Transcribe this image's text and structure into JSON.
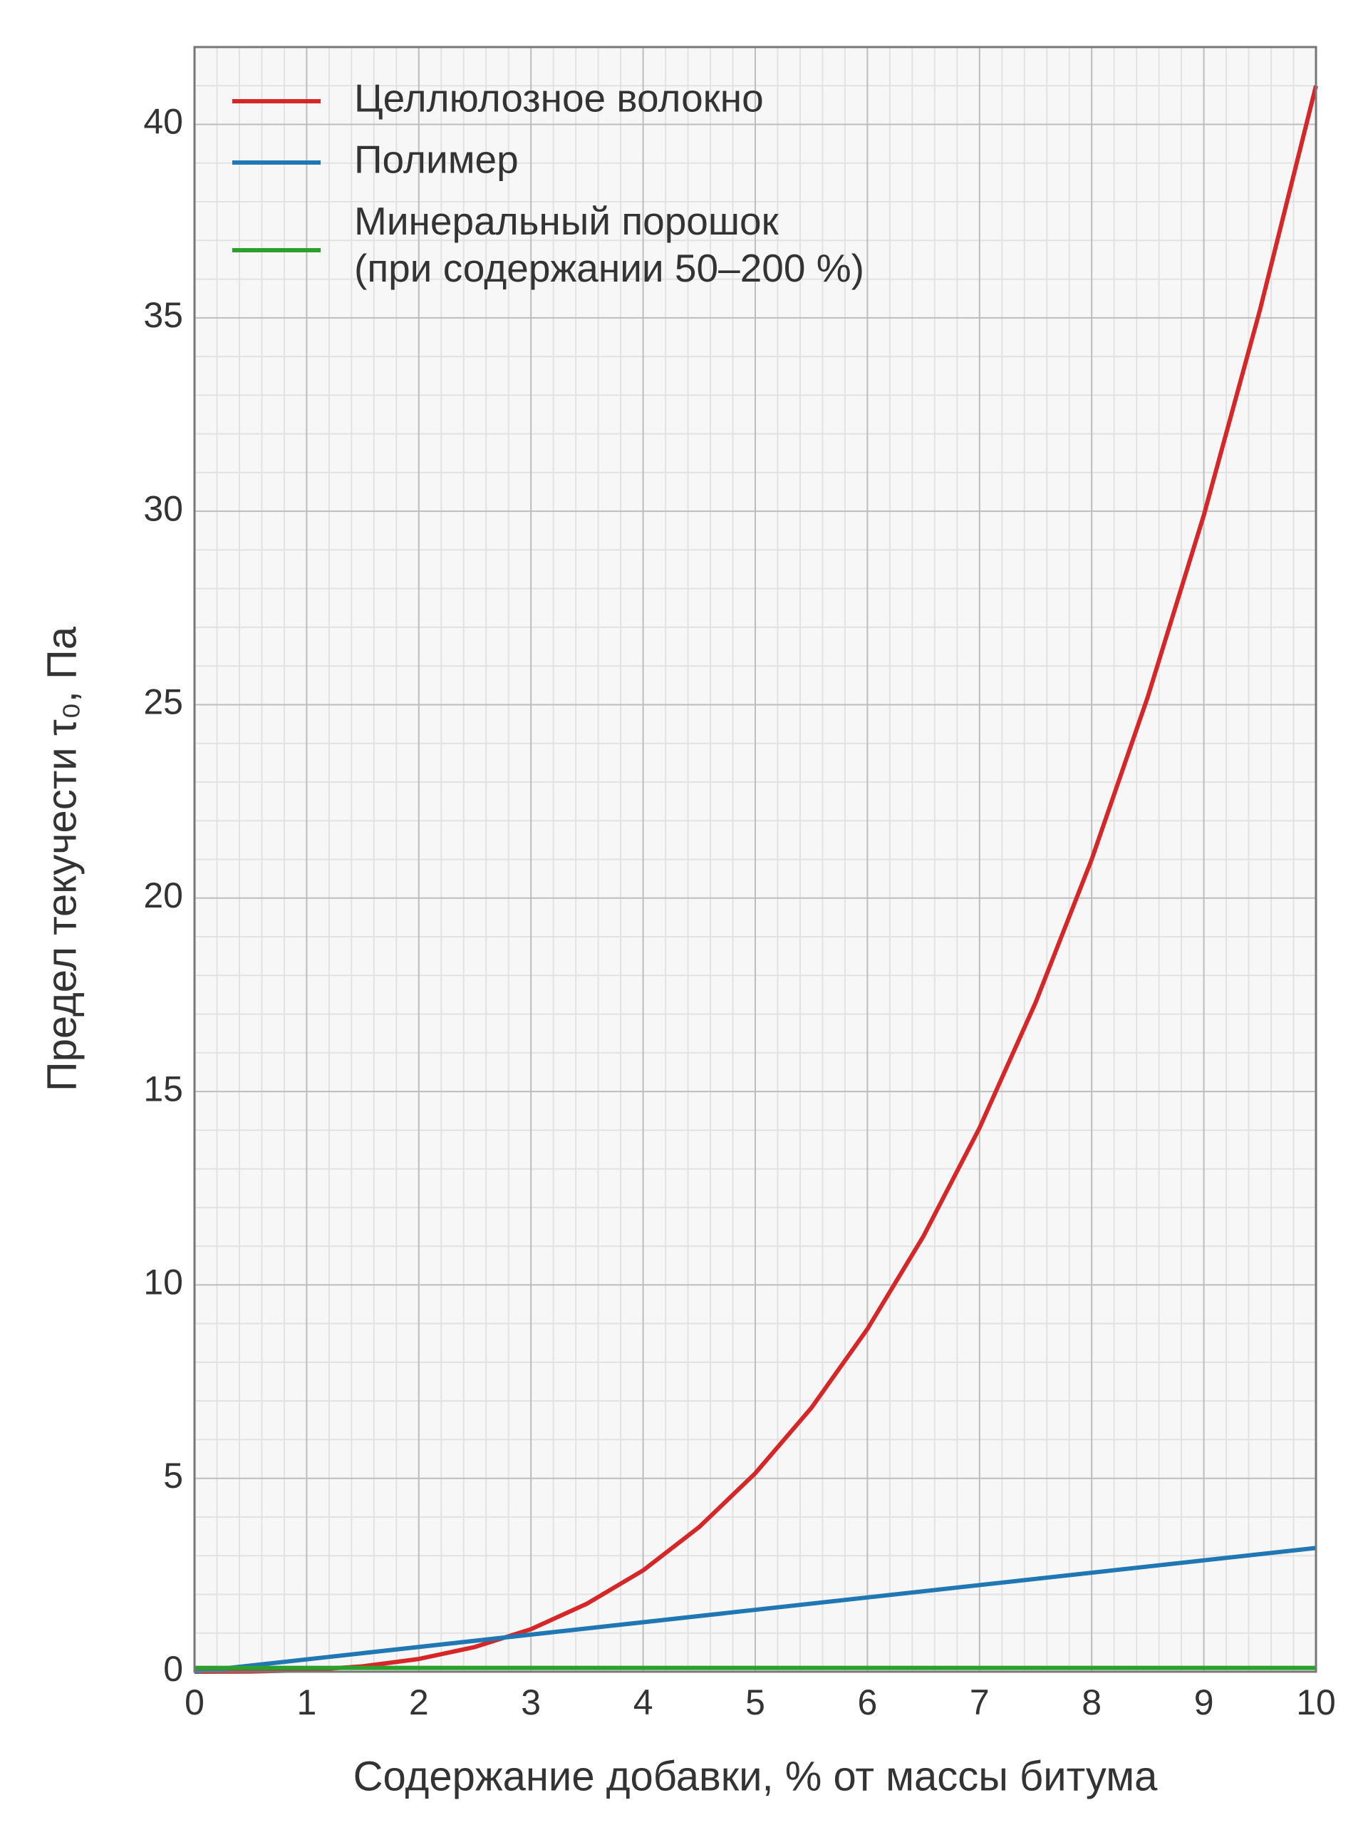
{
  "chart_data": {
    "type": "line",
    "xlabel": "Содержание добавки, % от массы битума",
    "ylabel": "Предел текучести τ₀, Па",
    "xlim": [
      0,
      10
    ],
    "xticks": [
      0,
      1,
      2,
      3,
      4,
      5,
      6,
      7,
      8,
      9,
      10
    ],
    "ylim": [
      0,
      42
    ],
    "yticks": [
      0,
      5,
      10,
      15,
      20,
      25,
      30,
      35,
      40
    ],
    "grid": true,
    "minor_grid": true,
    "legend": "upper left",
    "series": [
      {
        "name": "Целлюлозное волокно",
        "color": "#d62728",
        "x": [
          0,
          0.5,
          1,
          1.5,
          2,
          2.5,
          3,
          3.5,
          4,
          4.5,
          5,
          5.5,
          6,
          6.5,
          7,
          7.5,
          8,
          8.5,
          9,
          9.5,
          10
        ],
        "values": [
          0,
          0.005,
          0.04,
          0.14,
          0.33,
          0.64,
          1.1,
          1.76,
          2.62,
          3.74,
          5.13,
          6.82,
          8.86,
          11.26,
          14.06,
          17.3,
          21.0,
          25.2,
          29.9,
          35.2,
          41.0
        ]
      },
      {
        "name": "Полимер",
        "color": "#1f77b4",
        "x": [
          0,
          10
        ],
        "values": [
          0,
          3.2
        ]
      },
      {
        "name": "Минеральный порошок\n(при содержании 50–200 %)",
        "color": "#2ca02c",
        "x": [
          0,
          10
        ],
        "values": [
          0.1,
          0.1
        ]
      }
    ]
  }
}
